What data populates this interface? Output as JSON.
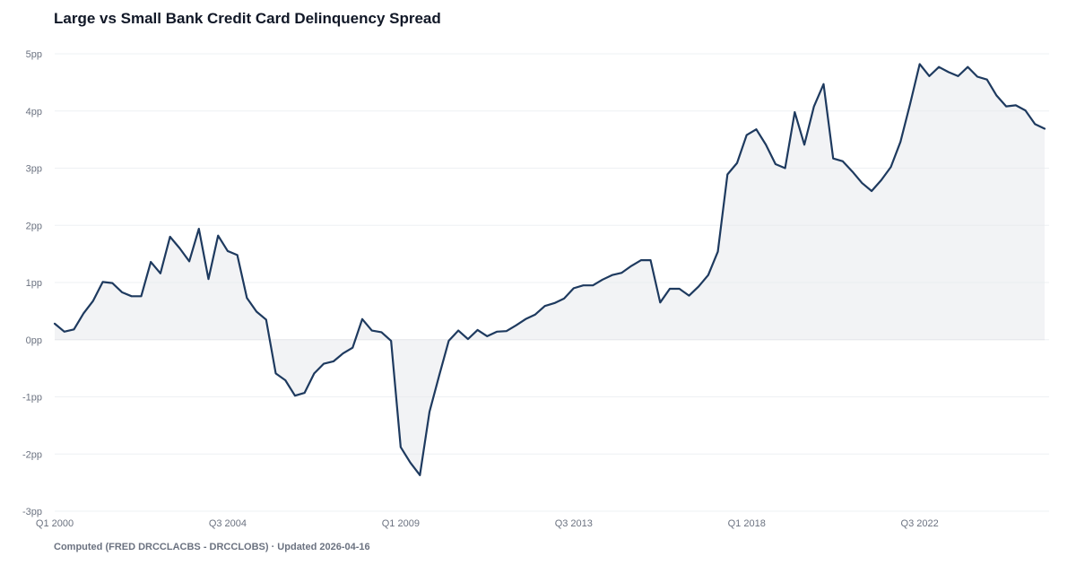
{
  "chart_data": {
    "type": "area",
    "title": "Large vs Small Bank Credit Card Delinquency Spread",
    "xlabel": "",
    "ylabel": "",
    "y_unit": "pp",
    "ylim": [
      -3,
      5
    ],
    "y_ticks": [
      "5pp",
      "4pp",
      "3pp",
      "2pp",
      "1pp",
      "0pp",
      "-1pp",
      "-2pp",
      "-3pp"
    ],
    "x_ticks": [
      "Q1 2000",
      "Q3 2004",
      "Q1 2009",
      "Q3 2013",
      "Q1 2018",
      "Q3 2022"
    ],
    "grid": true,
    "legend": "none",
    "line_color": "#1e3a5f",
    "fill_color": "#e5e7eb",
    "series": [
      {
        "x": [
          "2000Q1",
          "2000Q2",
          "2000Q3",
          "2000Q4",
          "2001Q1",
          "2001Q2",
          "2001Q3",
          "2001Q4",
          "2002Q1",
          "2002Q2",
          "2002Q3",
          "2002Q4",
          "2003Q1",
          "2003Q2",
          "2003Q3",
          "2003Q4",
          "2004Q1",
          "2004Q2",
          "2004Q3",
          "2004Q4",
          "2005Q1",
          "2005Q2",
          "2005Q3",
          "2005Q4",
          "2006Q1",
          "2006Q2",
          "2006Q3",
          "2006Q4",
          "2007Q1",
          "2007Q2",
          "2007Q3",
          "2007Q4",
          "2008Q1",
          "2008Q2",
          "2008Q3",
          "2008Q4",
          "2009Q1",
          "2009Q2",
          "2009Q3",
          "2009Q4",
          "2010Q1",
          "2010Q2",
          "2010Q3",
          "2010Q4",
          "2011Q1",
          "2011Q2",
          "2011Q3",
          "2011Q4",
          "2012Q1",
          "2012Q2",
          "2012Q3",
          "2012Q4",
          "2013Q1",
          "2013Q2",
          "2013Q3",
          "2013Q4",
          "2014Q1",
          "2014Q2",
          "2014Q3",
          "2014Q4",
          "2015Q1",
          "2015Q2",
          "2015Q3",
          "2015Q4",
          "2016Q1",
          "2016Q2",
          "2016Q3",
          "2016Q4",
          "2017Q1",
          "2017Q2",
          "2017Q3",
          "2017Q4",
          "2018Q1",
          "2018Q2",
          "2018Q3",
          "2018Q4",
          "2019Q1",
          "2019Q2",
          "2019Q3",
          "2019Q4",
          "2020Q1",
          "2020Q2",
          "2020Q3",
          "2020Q4",
          "2021Q1",
          "2021Q2",
          "2021Q3",
          "2021Q4",
          "2022Q1",
          "2022Q2",
          "2022Q3",
          "2022Q4",
          "2023Q1",
          "2023Q2",
          "2023Q3",
          "2023Q4",
          "2024Q1",
          "2024Q2",
          "2024Q3",
          "2024Q4",
          "2025Q1",
          "2025Q2",
          "2025Q3",
          "2025Q4"
        ],
        "values": [
          0.28,
          0.14,
          0.18,
          0.46,
          0.68,
          1.01,
          0.99,
          0.83,
          0.76,
          0.76,
          1.36,
          1.16,
          1.8,
          1.6,
          1.37,
          1.94,
          1.06,
          1.82,
          1.55,
          1.48,
          0.73,
          0.49,
          0.35,
          -0.59,
          -0.71,
          -0.98,
          -0.93,
          -0.59,
          -0.42,
          -0.38,
          -0.24,
          -0.14,
          0.36,
          0.16,
          0.13,
          -0.02,
          -1.88,
          -2.15,
          -2.37,
          -1.26,
          -0.63,
          -0.02,
          0.16,
          0.01,
          0.17,
          0.06,
          0.14,
          0.15,
          0.25,
          0.36,
          0.44,
          0.59,
          0.64,
          0.72,
          0.9,
          0.95,
          0.95,
          1.05,
          1.13,
          1.17,
          1.29,
          1.39,
          1.39,
          0.65,
          0.89,
          0.89,
          0.77,
          0.93,
          1.13,
          1.54,
          2.89,
          3.09,
          3.58,
          3.68,
          3.41,
          3.07,
          3.0,
          3.98,
          3.41,
          4.08,
          4.47,
          3.17,
          3.12,
          2.94,
          2.74,
          2.6,
          2.79,
          3.02,
          3.46,
          4.12,
          4.82,
          4.61,
          4.77,
          4.68,
          4.61,
          4.77,
          4.6,
          4.55,
          4.27,
          4.08,
          4.1,
          4.01,
          3.77,
          3.69
        ]
      }
    ]
  },
  "footer": {
    "source_text": "Computed (FRED DRCCLACBS - DRCCLOBS) · Updated 2026-04-16"
  }
}
